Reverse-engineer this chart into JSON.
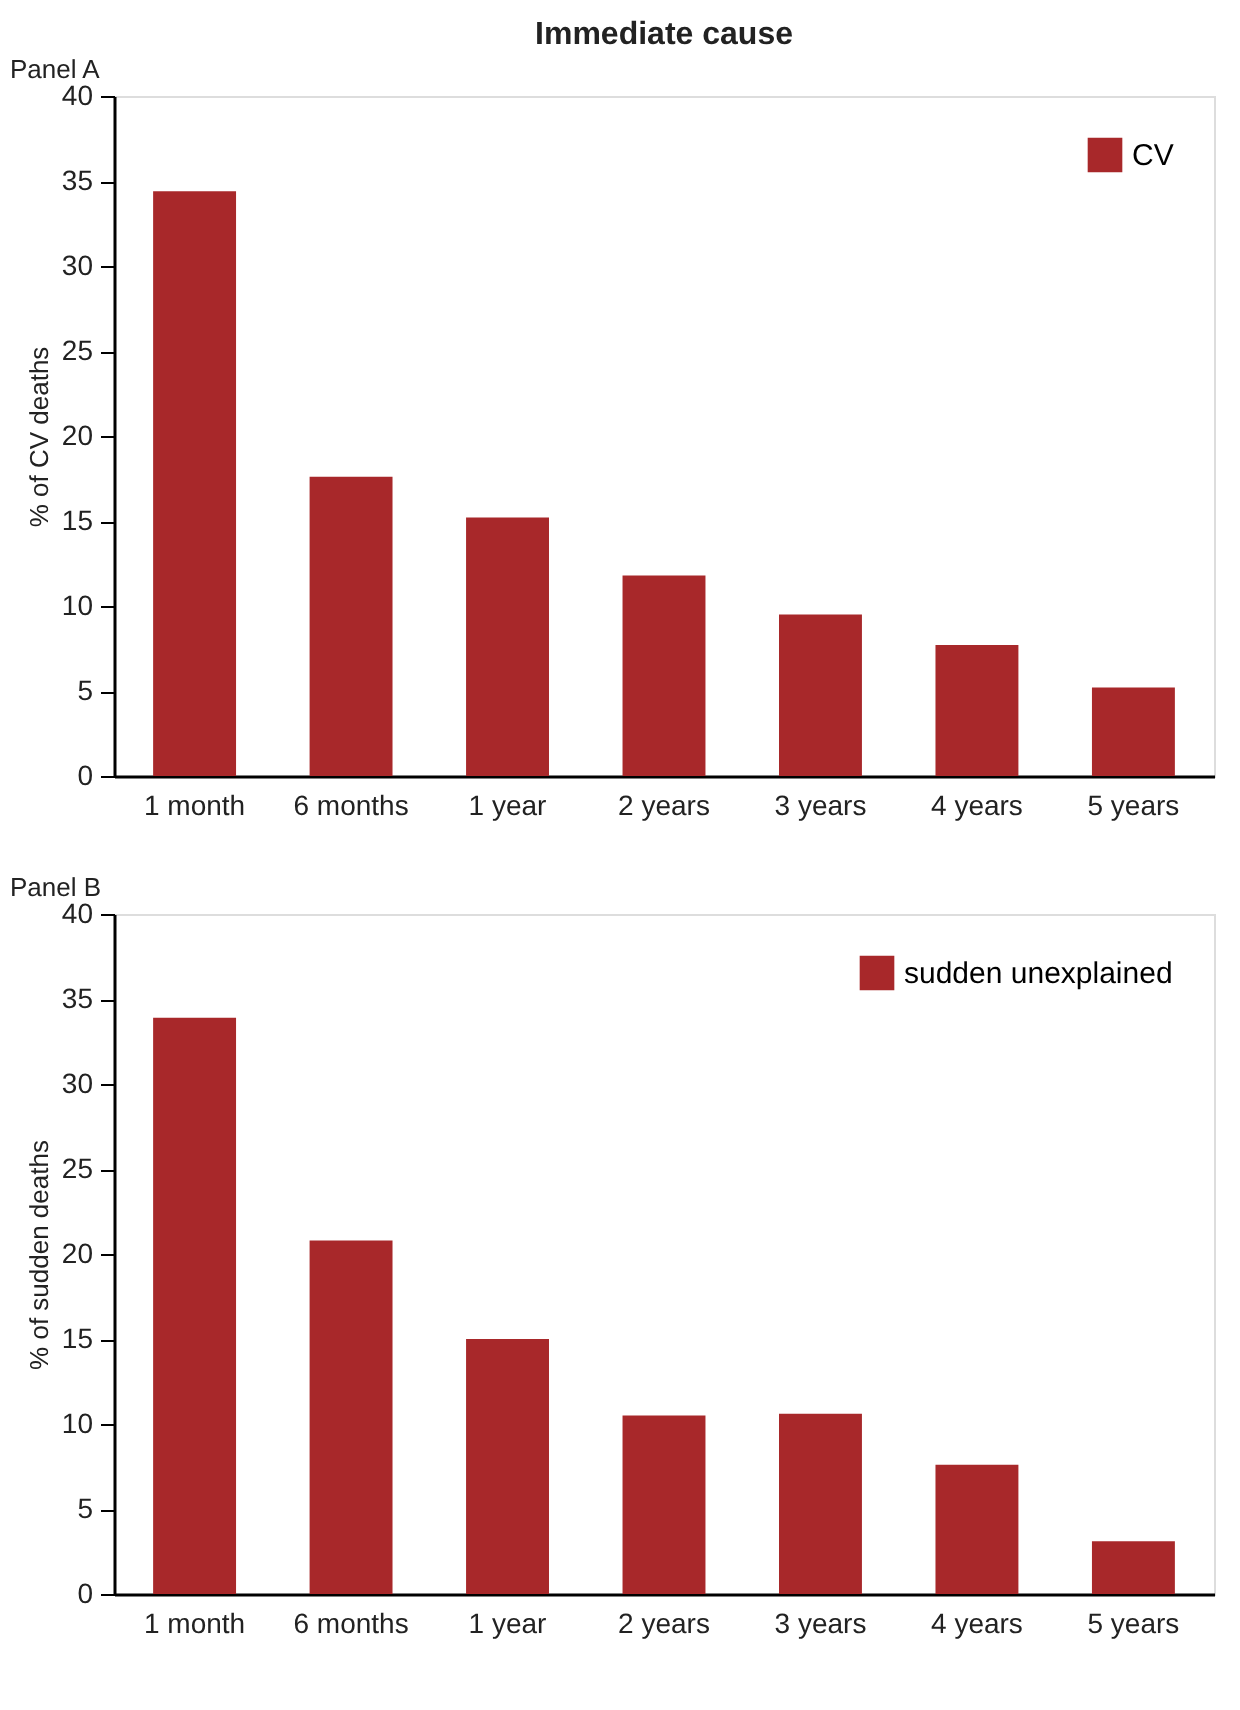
{
  "chart_data": [
    {
      "type": "bar",
      "title": "Immediate cause",
      "annotations": [
        "Panel A"
      ],
      "ylabel": "% of CV deaths",
      "categories": [
        "1 month",
        "6 months",
        "1 year",
        "2 years",
        "3 years",
        "4 years",
        "5 years"
      ],
      "series": [
        {
          "name": "CV",
          "color": "#a8282a",
          "values": [
            34.4,
            17.6,
            15.2,
            11.8,
            9.5,
            7.7,
            5.2
          ]
        }
      ],
      "ylim": [
        0,
        40
      ],
      "yticks": [
        0,
        5,
        10,
        15,
        20,
        25,
        30,
        35,
        40
      ],
      "grid": false,
      "legend": "top right"
    },
    {
      "type": "bar",
      "annotations": [
        "Panel B"
      ],
      "ylabel": "% of sudden deaths",
      "categories": [
        "1 month",
        "6 months",
        "1 year",
        "2 years",
        "3 years",
        "4 years",
        "5 years"
      ],
      "series": [
        {
          "name": "sudden unexplained",
          "color": "#a8282a",
          "values": [
            33.9,
            20.8,
            15.0,
            10.5,
            10.6,
            7.6,
            3.1
          ]
        }
      ],
      "ylim": [
        0,
        40
      ],
      "yticks": [
        0,
        5,
        10,
        15,
        20,
        25,
        30,
        35,
        40
      ],
      "grid": false,
      "legend": "top right"
    }
  ]
}
